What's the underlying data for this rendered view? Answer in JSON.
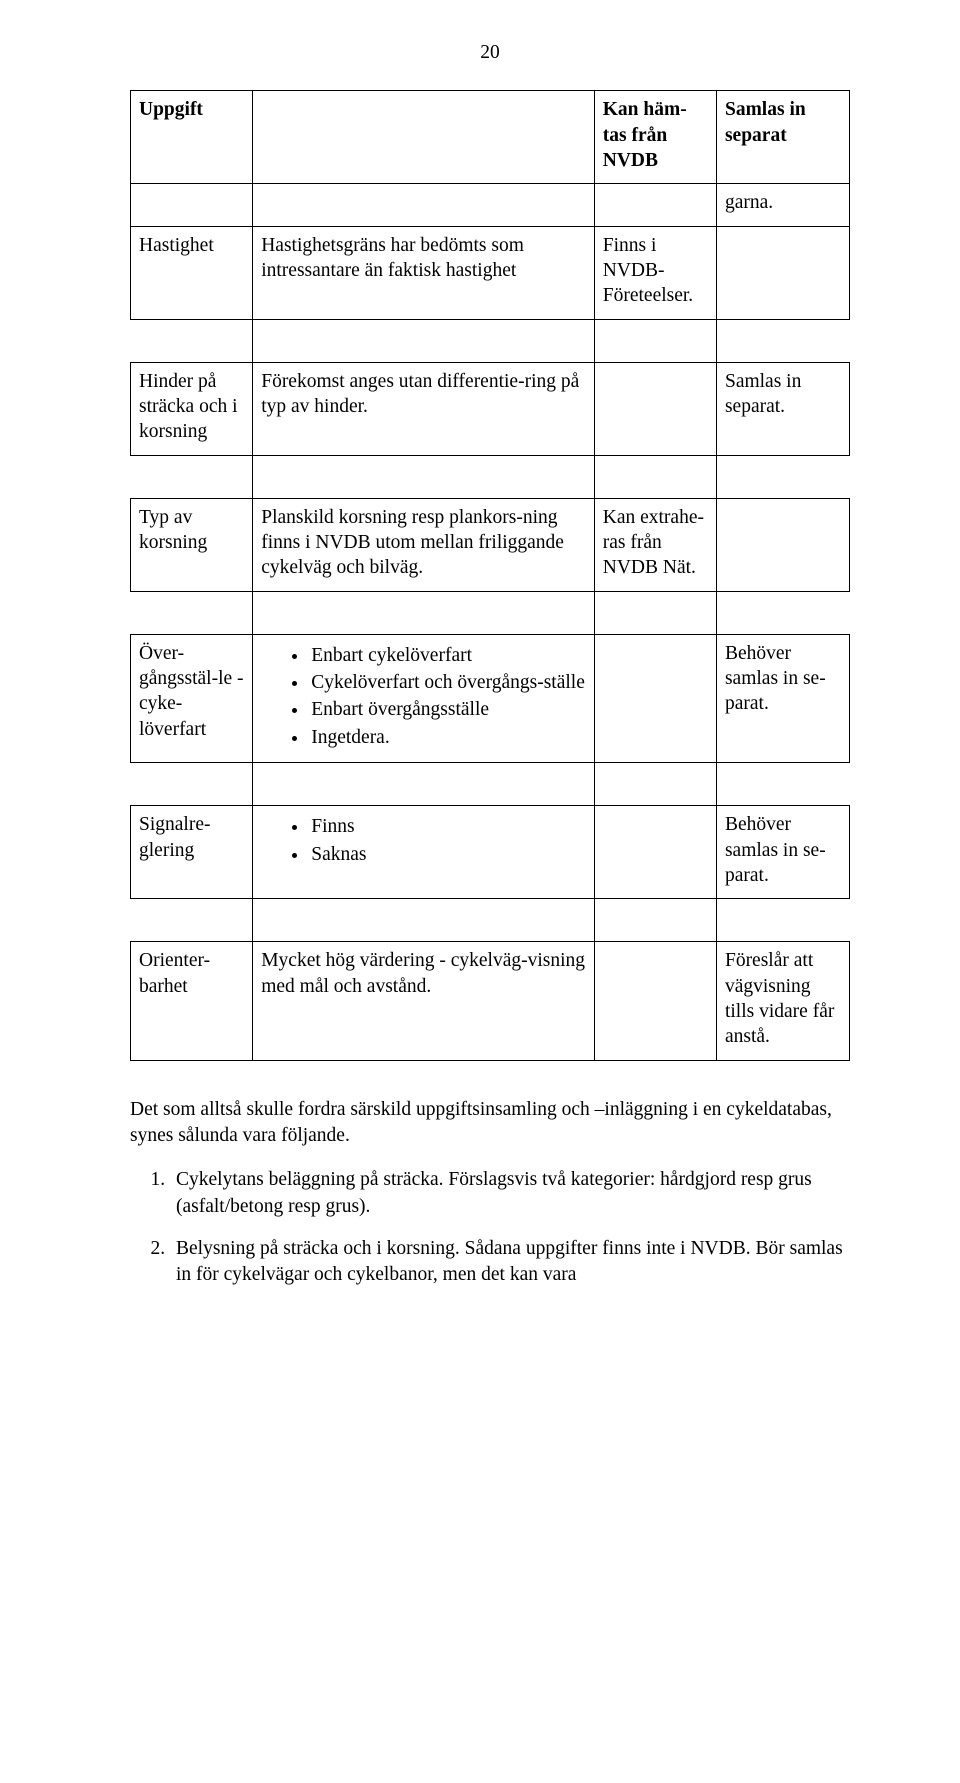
{
  "page_number": "20",
  "table": {
    "headers": {
      "col_a": "Uppgift",
      "col_b_empty": "",
      "col_c": "Kan häm-\ntas från NVDB",
      "col_d": "Samlas in separat"
    },
    "rows": {
      "garna": {
        "col_a": "",
        "col_b": "",
        "col_c": "",
        "col_d": "garna."
      },
      "hastighet": {
        "col_a": "Hastighet",
        "col_b": "Hastighetsgräns har bedömts som intressantare än faktisk hastighet",
        "col_c": "Finns i NVDB-Företeelser.",
        "col_d": ""
      },
      "hinder": {
        "col_a": "Hinder på sträcka och i korsning",
        "col_b": "Förekomst anges utan differentie-ring på typ av hinder.",
        "col_c": "",
        "col_d": "Samlas in separat."
      },
      "typ_korsning": {
        "col_a": "Typ av korsning",
        "col_b": "Planskild korsning resp plankors-ning finns i NVDB utom mellan friliggande cykelväg och bilväg.",
        "col_c": "Kan extrahe-ras från NVDB Nät.",
        "col_d": ""
      },
      "overgang": {
        "col_a": "Över-gångsstäl-le - cyke-löverfart",
        "col_b_items": [
          "Enbart cykelöverfart",
          "Cykelöverfart och övergångs-ställe",
          "Enbart övergångsställe",
          "Ingetdera."
        ],
        "col_c": "",
        "col_d": "Behöver samlas in se-parat."
      },
      "signal": {
        "col_a": "Signalre-glering",
        "col_b_items": [
          "Finns",
          "Saknas"
        ],
        "col_c": "",
        "col_d": "Behöver samlas in se-parat."
      },
      "orienter": {
        "col_a": "Orienter-barhet",
        "col_b": "Mycket hög värdering - cykelväg-visning med mål och avstånd.",
        "col_c": "",
        "col_d": "Föreslår att vägvisning tills vidare får anstå."
      }
    }
  },
  "body": {
    "para": "Det som alltså skulle fordra särskild uppgiftsinsamling och –inläggning i en cykeldatabas, synes sålunda vara följande.",
    "items": [
      "Cykelytans beläggning på sträcka. Förslagsvis två kategorier: hårdgjord resp grus (asfalt/betong resp grus).",
      "Belysning på sträcka och i korsning. Sådana uppgifter finns inte i NVDB. Bör samlas in för cykelvägar och cykelbanor, men det kan vara"
    ]
  }
}
